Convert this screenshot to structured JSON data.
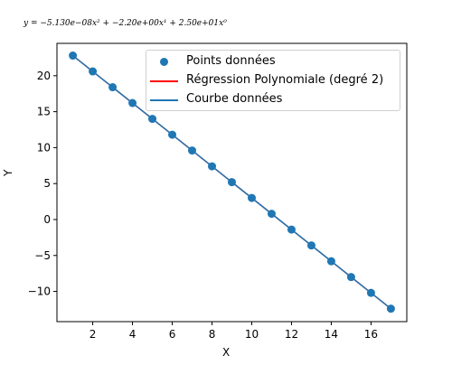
{
  "chart_data": {
    "type": "scatter",
    "title": "y = −5.130e−08x² + −2.20e+00x¹ + 2.50e+01x⁰",
    "xlabel": "X",
    "ylabel": "Y",
    "xlim": [
      0.2,
      17.8
    ],
    "ylim": [
      -14.2,
      24.5
    ],
    "x_ticks": [
      2,
      4,
      6,
      8,
      10,
      12,
      14,
      16
    ],
    "y_ticks": [
      -10,
      -5,
      0,
      5,
      10,
      15,
      20
    ],
    "x_tick_labels": [
      "2",
      "4",
      "6",
      "8",
      "10",
      "12",
      "14",
      "16"
    ],
    "y_tick_labels": [
      "−10",
      "−5",
      "0",
      "5",
      "10",
      "15",
      "20"
    ],
    "grid": false,
    "legend_position": "top-right",
    "series": [
      {
        "name": "Points données",
        "kind": "scatter",
        "color": "#1f77b4",
        "x": [
          1,
          2,
          3,
          4,
          5,
          6,
          7,
          8,
          9,
          10,
          11,
          12,
          13,
          14,
          15,
          16,
          17
        ],
        "y": [
          22.8,
          20.6,
          18.4,
          16.2,
          14.0,
          11.8,
          9.6,
          7.4,
          5.2,
          3.0,
          0.8,
          -1.4,
          -3.6,
          -5.8,
          -8.0,
          -10.2,
          -12.4
        ]
      },
      {
        "name": "Régression Polynomiale (degré 2)",
        "kind": "line",
        "color": "#ff0000",
        "x": [
          1,
          17
        ],
        "y": [
          22.8,
          -12.4
        ]
      },
      {
        "name": "Courbe données",
        "kind": "line",
        "color": "#1f77b4",
        "x": [
          1,
          2,
          3,
          4,
          5,
          6,
          7,
          8,
          9,
          10,
          11,
          12,
          13,
          14,
          15,
          16,
          17
        ],
        "y": [
          22.8,
          20.6,
          18.4,
          16.2,
          14.0,
          11.8,
          9.6,
          7.4,
          5.2,
          3.0,
          0.8,
          -1.4,
          -3.6,
          -5.8,
          -8.0,
          -10.2,
          -12.4
        ]
      }
    ]
  }
}
